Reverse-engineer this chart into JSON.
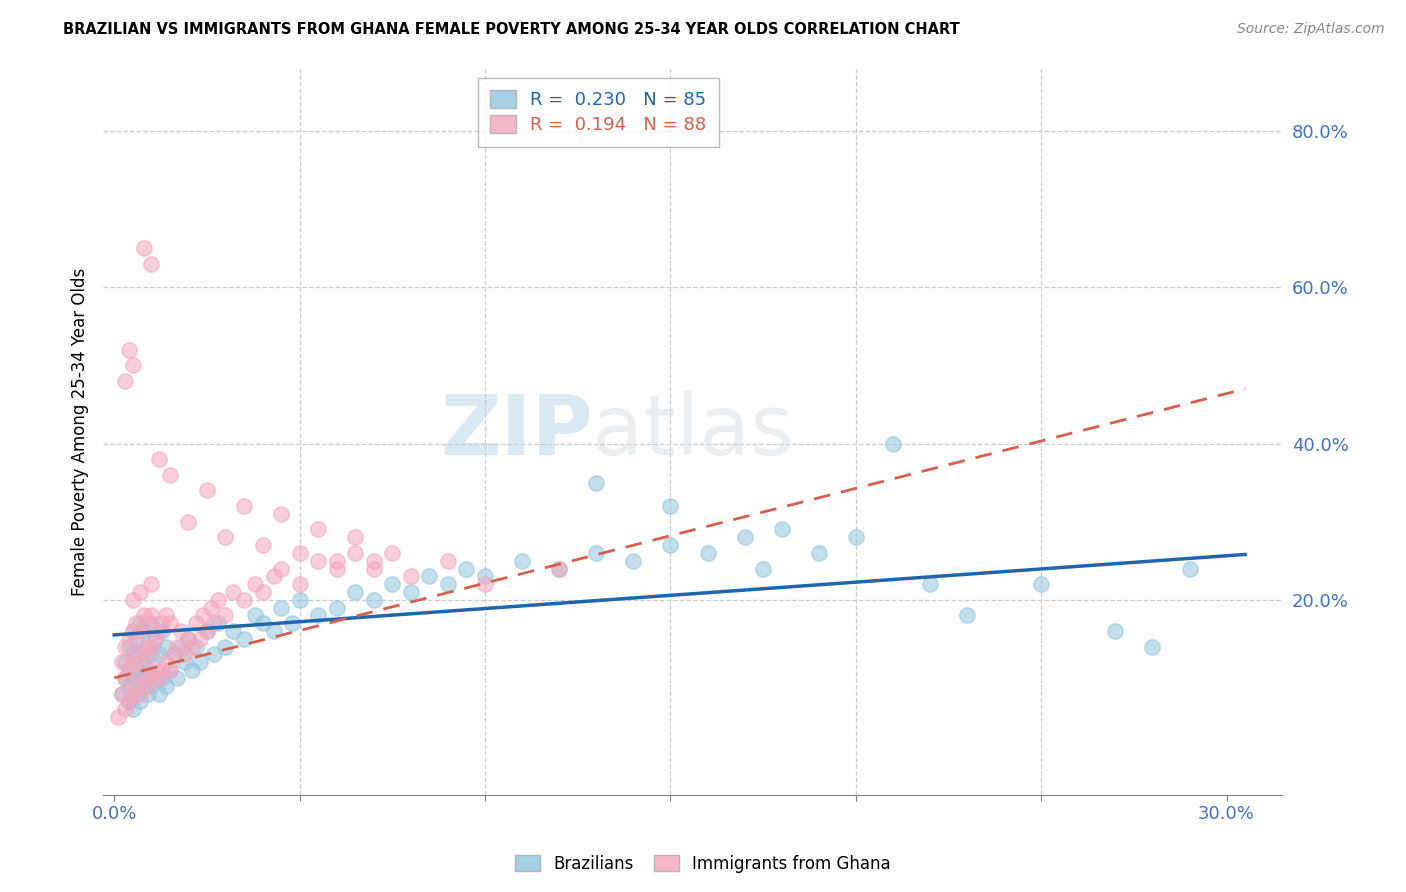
{
  "title": "BRAZILIAN VS IMMIGRANTS FROM GHANA FEMALE POVERTY AMONG 25-34 YEAR OLDS CORRELATION CHART",
  "source": "Source: ZipAtlas.com",
  "ylabel": "Female Poverty Among 25-34 Year Olds",
  "xlim": [
    -0.003,
    0.315
  ],
  "ylim": [
    -0.05,
    0.88
  ],
  "xticks": [
    0.0,
    0.05,
    0.1,
    0.15,
    0.2,
    0.25,
    0.3
  ],
  "xtick_labels": [
    "0.0%",
    "",
    "",
    "",
    "",
    "",
    "30.0%"
  ],
  "yticks_right": [
    0.2,
    0.4,
    0.6,
    0.8
  ],
  "ytick_labels_right": [
    "20.0%",
    "40.0%",
    "60.0%",
    "80.0%"
  ],
  "brazil_R": 0.23,
  "brazil_N": 85,
  "ghana_R": 0.194,
  "ghana_N": 88,
  "brazil_color": "#92c5de",
  "ghana_color": "#f4a6bc",
  "brazil_line_color": "#2166ac",
  "ghana_line_color": "#d6604d",
  "watermark_zip": "ZIP",
  "watermark_atlas": "atlas",
  "legend_brazil_label": "Brazilians",
  "legend_ghana_label": "Immigrants from Ghana",
  "brazil_x": [
    0.002,
    0.003,
    0.003,
    0.004,
    0.004,
    0.004,
    0.005,
    0.005,
    0.005,
    0.005,
    0.006,
    0.006,
    0.006,
    0.007,
    0.007,
    0.007,
    0.007,
    0.008,
    0.008,
    0.008,
    0.009,
    0.009,
    0.009,
    0.01,
    0.01,
    0.01,
    0.011,
    0.011,
    0.012,
    0.012,
    0.013,
    0.013,
    0.014,
    0.014,
    0.015,
    0.016,
    0.017,
    0.018,
    0.019,
    0.02,
    0.021,
    0.022,
    0.023,
    0.025,
    0.027,
    0.028,
    0.03,
    0.032,
    0.035,
    0.038,
    0.04,
    0.043,
    0.045,
    0.048,
    0.05,
    0.055,
    0.06,
    0.065,
    0.07,
    0.075,
    0.08,
    0.085,
    0.09,
    0.095,
    0.1,
    0.11,
    0.12,
    0.13,
    0.14,
    0.15,
    0.16,
    0.17,
    0.175,
    0.18,
    0.19,
    0.2,
    0.21,
    0.22,
    0.23,
    0.25,
    0.27,
    0.28,
    0.13,
    0.15,
    0.29
  ],
  "brazil_y": [
    0.08,
    0.1,
    0.12,
    0.07,
    0.09,
    0.14,
    0.06,
    0.1,
    0.13,
    0.16,
    0.08,
    0.11,
    0.15,
    0.07,
    0.1,
    0.13,
    0.17,
    0.09,
    0.12,
    0.16,
    0.08,
    0.11,
    0.14,
    0.09,
    0.13,
    0.17,
    0.1,
    0.15,
    0.08,
    0.13,
    0.1,
    0.16,
    0.09,
    0.14,
    0.11,
    0.13,
    0.1,
    0.14,
    0.12,
    0.15,
    0.11,
    0.14,
    0.12,
    0.16,
    0.13,
    0.17,
    0.14,
    0.16,
    0.15,
    0.18,
    0.17,
    0.16,
    0.19,
    0.17,
    0.2,
    0.18,
    0.19,
    0.21,
    0.2,
    0.22,
    0.21,
    0.23,
    0.22,
    0.24,
    0.23,
    0.25,
    0.24,
    0.26,
    0.25,
    0.27,
    0.26,
    0.28,
    0.24,
    0.29,
    0.26,
    0.28,
    0.4,
    0.22,
    0.18,
    0.22,
    0.16,
    0.14,
    0.35,
    0.32,
    0.24
  ],
  "ghana_x": [
    0.001,
    0.002,
    0.002,
    0.003,
    0.003,
    0.003,
    0.004,
    0.004,
    0.004,
    0.005,
    0.005,
    0.005,
    0.005,
    0.006,
    0.006,
    0.006,
    0.007,
    0.007,
    0.007,
    0.007,
    0.008,
    0.008,
    0.008,
    0.009,
    0.009,
    0.009,
    0.01,
    0.01,
    0.01,
    0.01,
    0.011,
    0.011,
    0.012,
    0.012,
    0.013,
    0.013,
    0.014,
    0.014,
    0.015,
    0.015,
    0.016,
    0.017,
    0.018,
    0.019,
    0.02,
    0.021,
    0.022,
    0.023,
    0.024,
    0.025,
    0.026,
    0.027,
    0.028,
    0.03,
    0.032,
    0.035,
    0.038,
    0.04,
    0.043,
    0.045,
    0.05,
    0.055,
    0.06,
    0.065,
    0.07,
    0.01,
    0.008,
    0.005,
    0.003,
    0.004,
    0.012,
    0.015,
    0.02,
    0.025,
    0.03,
    0.035,
    0.04,
    0.045,
    0.05,
    0.055,
    0.06,
    0.065,
    0.07,
    0.075,
    0.08,
    0.09,
    0.1,
    0.12
  ],
  "ghana_y": [
    0.05,
    0.08,
    0.12,
    0.06,
    0.1,
    0.14,
    0.07,
    0.11,
    0.15,
    0.08,
    0.12,
    0.16,
    0.2,
    0.09,
    0.13,
    0.17,
    0.08,
    0.12,
    0.16,
    0.21,
    0.1,
    0.14,
    0.18,
    0.09,
    0.13,
    0.17,
    0.1,
    0.14,
    0.18,
    0.22,
    0.11,
    0.15,
    0.1,
    0.16,
    0.11,
    0.17,
    0.12,
    0.18,
    0.11,
    0.17,
    0.13,
    0.14,
    0.16,
    0.13,
    0.15,
    0.14,
    0.17,
    0.15,
    0.18,
    0.16,
    0.19,
    0.17,
    0.2,
    0.18,
    0.21,
    0.2,
    0.22,
    0.21,
    0.23,
    0.24,
    0.22,
    0.25,
    0.24,
    0.26,
    0.25,
    0.63,
    0.65,
    0.5,
    0.48,
    0.52,
    0.38,
    0.36,
    0.3,
    0.34,
    0.28,
    0.32,
    0.27,
    0.31,
    0.26,
    0.29,
    0.25,
    0.28,
    0.24,
    0.26,
    0.23,
    0.25,
    0.22,
    0.24
  ]
}
